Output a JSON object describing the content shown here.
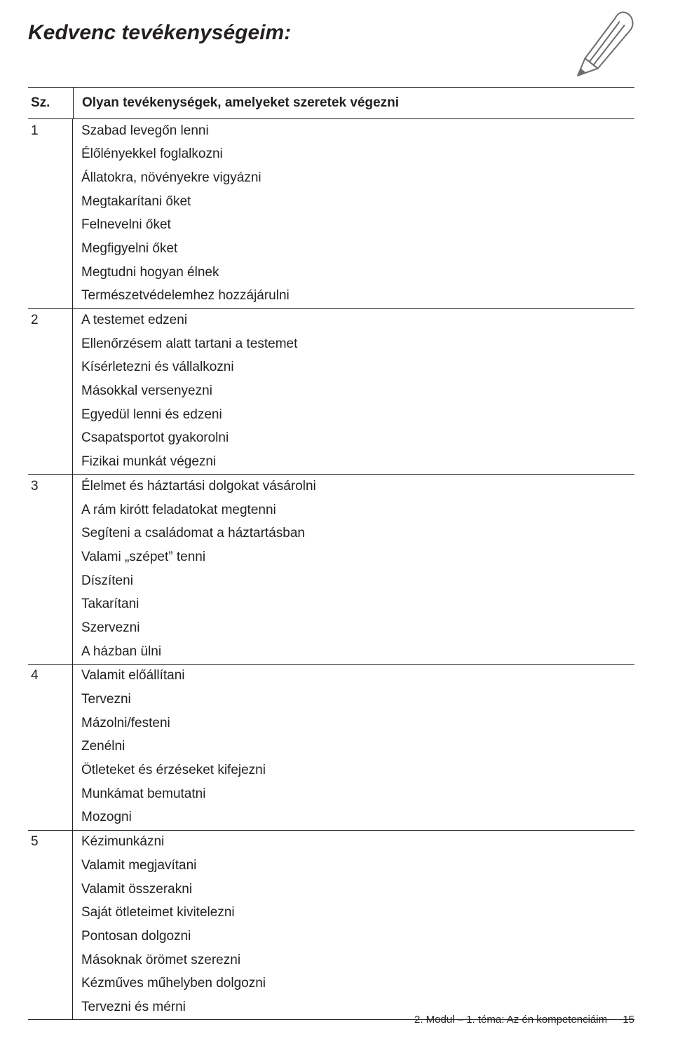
{
  "title": "Kedvenc tevékenységeim:",
  "header": {
    "num": "Sz.",
    "text": "Olyan tevékenységek, amelyeket szeretek végezni"
  },
  "groups": [
    {
      "num": "1",
      "items": [
        "Szabad levegőn lenni",
        "Élőlényekkel foglalkozni",
        "Állatokra, növényekre vigyázni",
        "Megtakarítani őket",
        "Felnevelni őket",
        "Megfigyelni őket",
        "Megtudni hogyan élnek",
        "Természetvédelemhez hozzájárulni"
      ]
    },
    {
      "num": "2",
      "items": [
        "A testemet edzeni",
        "Ellenőrzésem alatt tartani a testemet",
        "Kísérletezni és vállalkozni",
        "Másokkal versenyezni",
        "Egyedül lenni és edzeni",
        "Csapatsportot gyakorolni",
        "Fizikai munkát végezni"
      ]
    },
    {
      "num": "3",
      "items": [
        "Élelmet és háztartási dolgokat vásárolni",
        "A rám kirótt feladatokat megtenni",
        "Segíteni a családomat a háztartásban",
        "Valami „szépet” tenni",
        "Díszíteni",
        "Takarítani",
        "Szervezni",
        "A házban ülni"
      ]
    },
    {
      "num": "4",
      "items": [
        "Valamit előállítani",
        "Tervezni",
        "Mázolni/festeni",
        "Zenélni",
        "Ötleteket és érzéseket kifejezni",
        "Munkámat bemutatni",
        "Mozogni"
      ]
    },
    {
      "num": "5",
      "items": [
        "Kézimunkázni",
        "Valamit megjavítani",
        "Valamit összerakni",
        "Saját ötleteimet kivitelezni",
        "Pontosan dolgozni",
        "Másoknak örömet szerezni",
        "Kézműves műhelyben dolgozni",
        "Tervezni és mérni"
      ]
    }
  ],
  "footer": {
    "text": "2. Modul – 1. téma: Az én kompetenciáim",
    "page": "15"
  },
  "colors": {
    "text": "#231f20",
    "rule": "#231f20",
    "pencil_stroke": "#6d6e71",
    "pencil_fill": "#ffffff",
    "background": "#ffffff"
  }
}
